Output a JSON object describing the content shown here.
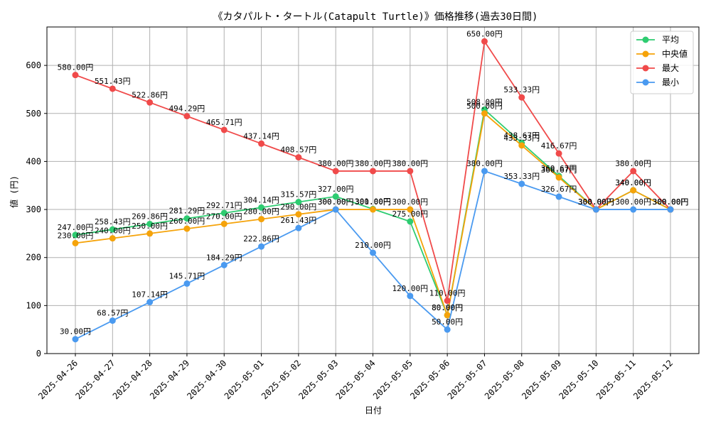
{
  "chart_data": {
    "type": "line",
    "title": "《カタパルト・タートル(Catapult Turtle)》価格推移(過去30日間)",
    "xlabel": "日付",
    "ylabel": "値 (円)",
    "ylim": [
      0,
      680
    ],
    "yticks": [
      0,
      100,
      200,
      300,
      400,
      500,
      600
    ],
    "grid": true,
    "legend_position": "top-right",
    "label_suffix": "円",
    "categories": [
      "2025-04-26",
      "2025-04-27",
      "2025-04-28",
      "2025-04-29",
      "2025-04-30",
      "2025-05-01",
      "2025-05-02",
      "2025-05-03",
      "2025-05-04",
      "2025-05-05",
      "2025-05-06",
      "2025-05-07",
      "2025-05-08",
      "2025-05-09",
      "2025-05-10",
      "2025-05-11",
      "2025-05-12"
    ],
    "series": [
      {
        "name": "平均",
        "color": "#2ecc71",
        "values": [
          247.0,
          258.43,
          269.86,
          281.29,
          292.71,
          304.14,
          315.57,
          327.0,
          301.0,
          275.0,
          80.0,
          508.0,
          438.67,
          369.67,
          300.0,
          340.0,
          300.0
        ]
      },
      {
        "name": "中央値",
        "color": "#f5a30a",
        "values": [
          230.0,
          240.0,
          250.0,
          260.0,
          270.0,
          280.0,
          290.0,
          300.0,
          300.0,
          300.0,
          80.0,
          500.0,
          433.33,
          366.67,
          300.0,
          340.0,
          300.0
        ]
      },
      {
        "name": "最大",
        "color": "#f04a4a",
        "values": [
          580.0,
          551.43,
          522.86,
          494.29,
          465.71,
          437.14,
          408.57,
          380.0,
          380.0,
          380.0,
          110.0,
          650.0,
          533.33,
          416.67,
          300.0,
          380.0,
          300.0
        ]
      },
      {
        "name": "最小",
        "color": "#4a9af0",
        "values": [
          30.0,
          68.57,
          107.14,
          145.71,
          184.29,
          222.86,
          261.43,
          300.0,
          210.0,
          120.0,
          50.0,
          380.0,
          353.33,
          326.67,
          300.0,
          300.0,
          300.0
        ]
      }
    ]
  }
}
